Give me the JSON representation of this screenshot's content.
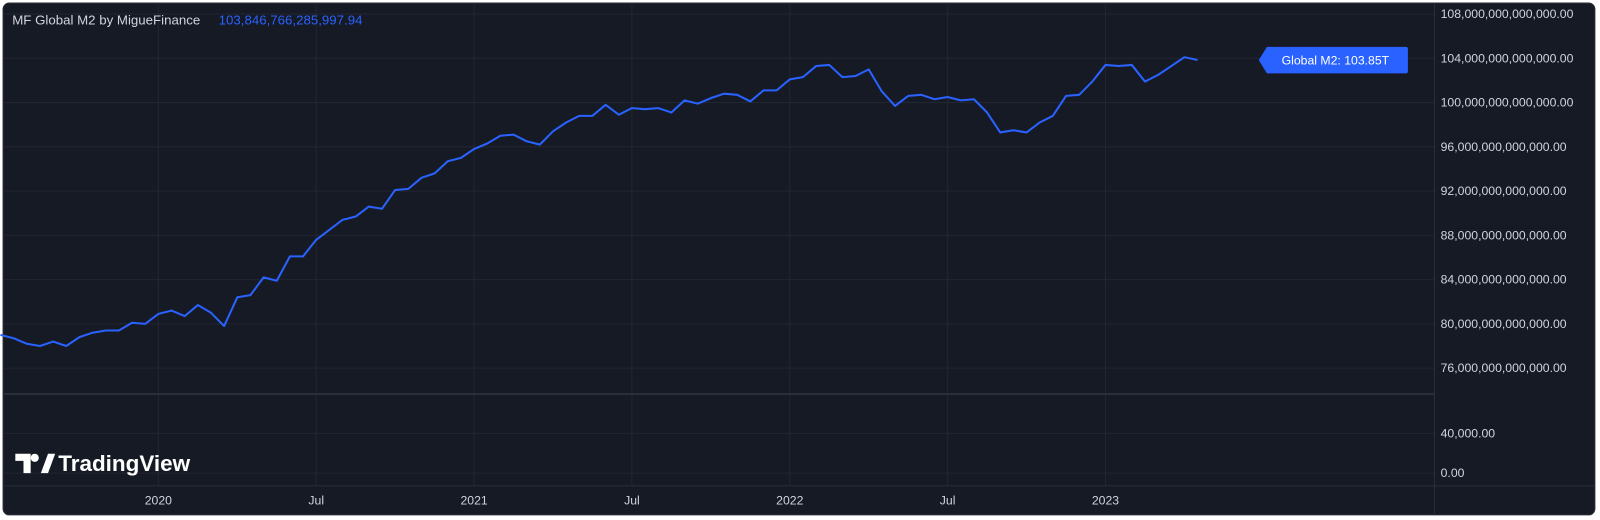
{
  "chart_data": {
    "type": "line",
    "title": "MF Global M2 by MigueFinance",
    "legend_value": {
      "value": 103846766285997.94,
      "label": "103,846,766,285,997.94"
    },
    "price_label": "Global M2: 103.85T",
    "watermark": "TradingView",
    "categories": [
      null,
      null,
      null,
      null,
      null,
      null,
      null,
      null,
      null,
      null,
      null,
      null,
      "2020",
      null,
      null,
      null,
      null,
      null,
      null,
      null,
      null,
      null,
      null,
      null,
      "Jul",
      null,
      null,
      null,
      null,
      null,
      null,
      null,
      null,
      null,
      null,
      null,
      "2021",
      null,
      null,
      null,
      null,
      null,
      null,
      null,
      null,
      null,
      null,
      null,
      "Jul",
      null,
      null,
      null,
      null,
      null,
      null,
      null,
      null,
      null,
      null,
      null,
      "2022",
      null,
      null,
      null,
      null,
      null,
      null,
      null,
      null,
      null,
      null,
      null,
      "Jul",
      null,
      null,
      null,
      null,
      null,
      null,
      null,
      null,
      null,
      null,
      null,
      "2023",
      null,
      null,
      null,
      null,
      null,
      null,
      null
    ],
    "series": [
      {
        "name": "Global M2",
        "color": "#2962ff",
        "values": [
          79000000000000,
          78700000000000,
          78200000000000,
          78000000000000,
          78400000000000,
          78000000000000,
          78800000000000,
          79200000000000,
          79400000000000,
          79400000000000,
          80100000000000,
          80000000000000,
          80900000000000,
          81200000000000,
          80700000000000,
          81700000000000,
          81000000000000,
          79800000000000,
          82400000000000,
          82600000000000,
          84200000000000,
          83900000000000,
          86100000000000,
          86100000000000,
          87600000000000,
          88500000000000,
          89400000000000,
          89700000000000,
          90600000000000,
          90400000000000,
          92100000000000,
          92200000000000,
          93200000000000,
          93600000000000,
          94700000000000,
          95000000000000,
          95800000000000,
          96300000000000,
          97000000000000,
          97100000000000,
          96500000000000,
          96200000000000,
          97400000000000,
          98200000000000,
          98800000000000,
          98800000000000,
          99800000000000,
          98900000000000,
          99500000000000,
          99400000000000,
          99500000000000,
          99100000000000,
          100200000000000,
          99900000000000,
          100400000000000,
          100800000000000,
          100700000000000,
          100100000000000,
          101100000000000,
          101100000000000,
          102100000000000,
          102300000000000,
          103300000000000,
          103400000000000,
          102300000000000,
          102400000000000,
          103000000000000,
          101000000000000,
          99700000000000,
          100600000000000,
          100700000000000,
          100300000000000,
          100500000000000,
          100200000000000,
          100300000000000,
          99100000000000,
          97300000000000,
          97500000000000,
          97300000000000,
          98200000000000,
          98800000000000,
          100600000000000,
          100700000000000,
          101900000000000,
          103400000000000,
          103300000000000,
          103400000000000,
          101900000000000,
          102500000000000,
          103300000000000,
          104100000000000,
          103846766285997.94
        ]
      }
    ],
    "ylim": [
      73700000000000,
      108900000000000
    ],
    "yticks": [
      {
        "value": 76000000000000,
        "label": "76,000,000,000,000.00"
      },
      {
        "value": 80000000000000,
        "label": "80,000,000,000,000.00"
      },
      {
        "value": 84000000000000,
        "label": "84,000,000,000,000.00"
      },
      {
        "value": 88000000000000,
        "label": "88,000,000,000,000.00"
      },
      {
        "value": 92000000000000,
        "label": "92,000,000,000,000.00"
      },
      {
        "value": 96000000000000,
        "label": "96,000,000,000,000.00"
      },
      {
        "value": 100000000000000,
        "label": "100,000,000,000,000.00"
      },
      {
        "value": 104000000000000,
        "label": "104,000,000,000,000.00"
      },
      {
        "value": 108000000000000,
        "label": "108,000,000,000,000.00"
      }
    ],
    "lower_pane": {
      "ylim": [
        -12300,
        79000
      ],
      "yticks": [
        {
          "value": 40000,
          "label": "40,000.00"
        },
        {
          "value": 0,
          "label": "0.00"
        }
      ]
    },
    "grid": true
  }
}
